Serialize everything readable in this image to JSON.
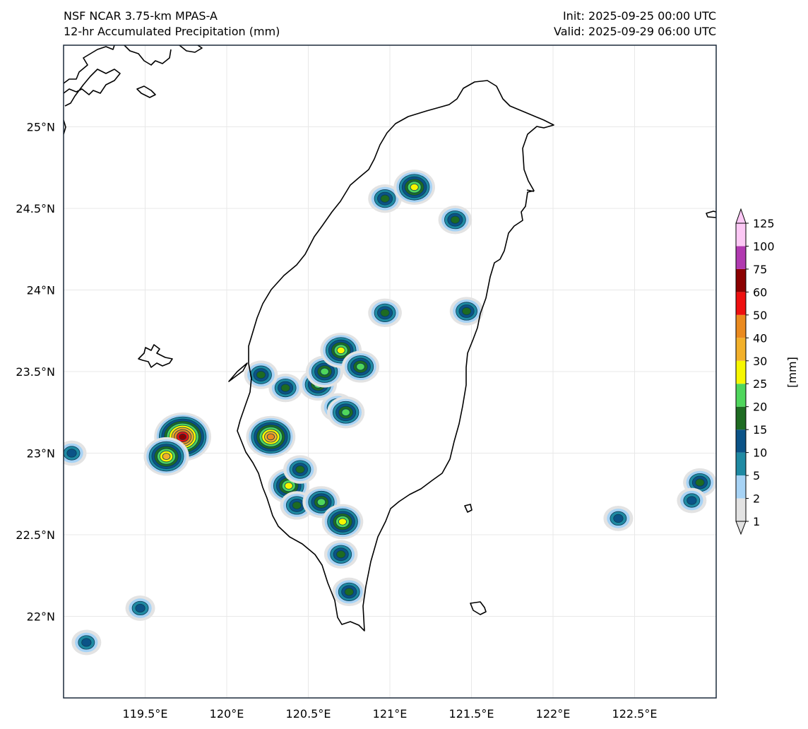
{
  "header": {
    "model": "NSF NCAR 3.75-km MPAS-A",
    "field": "12-hr Accumulated Precipitation (mm)",
    "init": "Init: 2025-09-25 00:00 UTC",
    "valid": "Valid: 2025-09-29 06:00 UTC"
  },
  "map": {
    "extent": {
      "lon_min": 119.0,
      "lon_max": 123.0,
      "lat_min": 21.5,
      "lat_max": 25.5
    },
    "lon_ticks": [
      {
        "value": 119.5,
        "label": "119.5°E"
      },
      {
        "value": 120.0,
        "label": "120°E"
      },
      {
        "value": 120.5,
        "label": "120.5°E"
      },
      {
        "value": 121.0,
        "label": "121°E"
      },
      {
        "value": 121.5,
        "label": "121.5°E"
      },
      {
        "value": 122.0,
        "label": "122°E"
      },
      {
        "value": 122.5,
        "label": "122.5°E"
      }
    ],
    "lat_ticks": [
      {
        "value": 22.0,
        "label": "22°N"
      },
      {
        "value": 22.5,
        "label": "22.5°N"
      },
      {
        "value": 23.0,
        "label": "23°N"
      },
      {
        "value": 23.5,
        "label": "23.5°N"
      },
      {
        "value": 24.0,
        "label": "24°N"
      },
      {
        "value": 24.5,
        "label": "24.5°N"
      },
      {
        "value": 25.0,
        "label": "25°N"
      }
    ],
    "gridlines": true
  },
  "colorbar": {
    "label": "[mm]",
    "levels": [
      {
        "label": "1",
        "color": "#e3e3e3"
      },
      {
        "label": "2",
        "color": "#a7d3f5"
      },
      {
        "label": "5",
        "color": "#1f8aa3"
      },
      {
        "label": "10",
        "color": "#0b5387"
      },
      {
        "label": "15",
        "color": "#1e6b22"
      },
      {
        "label": "20",
        "color": "#4fd65c"
      },
      {
        "label": "25",
        "color": "#f7f700"
      },
      {
        "label": "30",
        "color": "#f2b02a"
      },
      {
        "label": "40",
        "color": "#ea8a1f"
      },
      {
        "label": "50",
        "color": "#ee1010"
      },
      {
        "label": "60",
        "color": "#8b0000"
      },
      {
        "label": "75",
        "color": "#b13ab0"
      },
      {
        "label": "100",
        "color": "#fcc8f5"
      },
      {
        "label": "125",
        "color": ""
      }
    ]
  },
  "precip_cells": [
    {
      "lon": 119.73,
      "lat": 23.1,
      "max": 60
    },
    {
      "lon": 119.63,
      "lat": 22.98,
      "max": 30
    },
    {
      "lon": 120.27,
      "lat": 23.1,
      "max": 40
    },
    {
      "lon": 120.38,
      "lat": 22.8,
      "max": 25
    },
    {
      "lon": 120.43,
      "lat": 22.68,
      "max": 15
    },
    {
      "lon": 120.36,
      "lat": 23.4,
      "max": 15
    },
    {
      "lon": 120.21,
      "lat": 23.48,
      "max": 15
    },
    {
      "lon": 120.56,
      "lat": 23.42,
      "max": 20
    },
    {
      "lon": 120.6,
      "lat": 23.5,
      "max": 20
    },
    {
      "lon": 120.7,
      "lat": 23.63,
      "max": 25
    },
    {
      "lon": 120.68,
      "lat": 23.28,
      "max": 15
    },
    {
      "lon": 120.73,
      "lat": 23.25,
      "max": 20
    },
    {
      "lon": 120.58,
      "lat": 22.7,
      "max": 20
    },
    {
      "lon": 120.71,
      "lat": 22.58,
      "max": 25
    },
    {
      "lon": 120.7,
      "lat": 22.38,
      "max": 15
    },
    {
      "lon": 120.75,
      "lat": 22.15,
      "max": 15
    },
    {
      "lon": 120.82,
      "lat": 23.53,
      "max": 20
    },
    {
      "lon": 120.97,
      "lat": 24.56,
      "max": 15
    },
    {
      "lon": 121.15,
      "lat": 24.63,
      "max": 25
    },
    {
      "lon": 120.97,
      "lat": 23.86,
      "max": 15
    },
    {
      "lon": 121.47,
      "lat": 23.87,
      "max": 15
    },
    {
      "lon": 121.4,
      "lat": 24.43,
      "max": 15
    },
    {
      "lon": 120.45,
      "lat": 22.9,
      "max": 15
    },
    {
      "lon": 119.05,
      "lat": 23.0,
      "max": 10
    },
    {
      "lon": 122.9,
      "lat": 22.82,
      "max": 15
    },
    {
      "lon": 122.85,
      "lat": 22.71,
      "max": 10
    },
    {
      "lon": 122.4,
      "lat": 22.6,
      "max": 10
    },
    {
      "lon": 119.47,
      "lat": 22.05,
      "max": 10
    },
    {
      "lon": 119.14,
      "lat": 21.84,
      "max": 10
    }
  ]
}
